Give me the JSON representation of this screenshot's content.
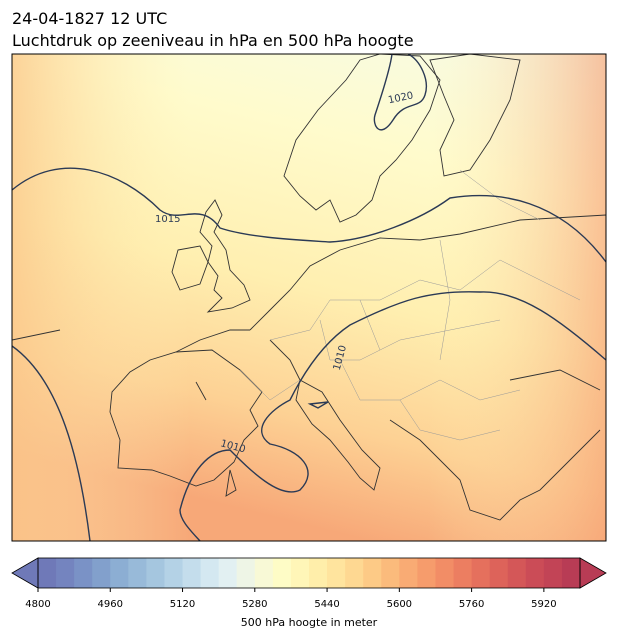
{
  "title": "24-04-1827 12 UTC",
  "subtitle": "Luchtdruk op zeeniveau in hPa en 500 hPa hoogte",
  "contour_labels": [
    "1020",
    "1015",
    "1010",
    "1010"
  ],
  "colorbar": {
    "label": "500 hPa hoogte in meter",
    "lim": [
      4800,
      6000
    ],
    "ticks": [
      4800,
      4960,
      5120,
      5280,
      5440,
      5600,
      5760,
      5920
    ],
    "colors": [
      "#6f79b8",
      "#7484bf",
      "#7a92c6",
      "#82a0cc",
      "#8caed3",
      "#98bad9",
      "#a5c6df",
      "#b4d2e6",
      "#c4ddec",
      "#d4e8f1",
      "#e2f0f2",
      "#eef5e6",
      "#f8f9d6",
      "#fefcc6",
      "#fff6b8",
      "#ffeeaa",
      "#ffe49e",
      "#fed892",
      "#fdca86",
      "#fbbb7c",
      "#f9ab74",
      "#f69c6c",
      "#f28d66",
      "#ec7e61",
      "#e5705d",
      "#dd635a",
      "#d45758",
      "#cb4c57",
      "#c24456",
      "#b83c55"
    ]
  }
}
